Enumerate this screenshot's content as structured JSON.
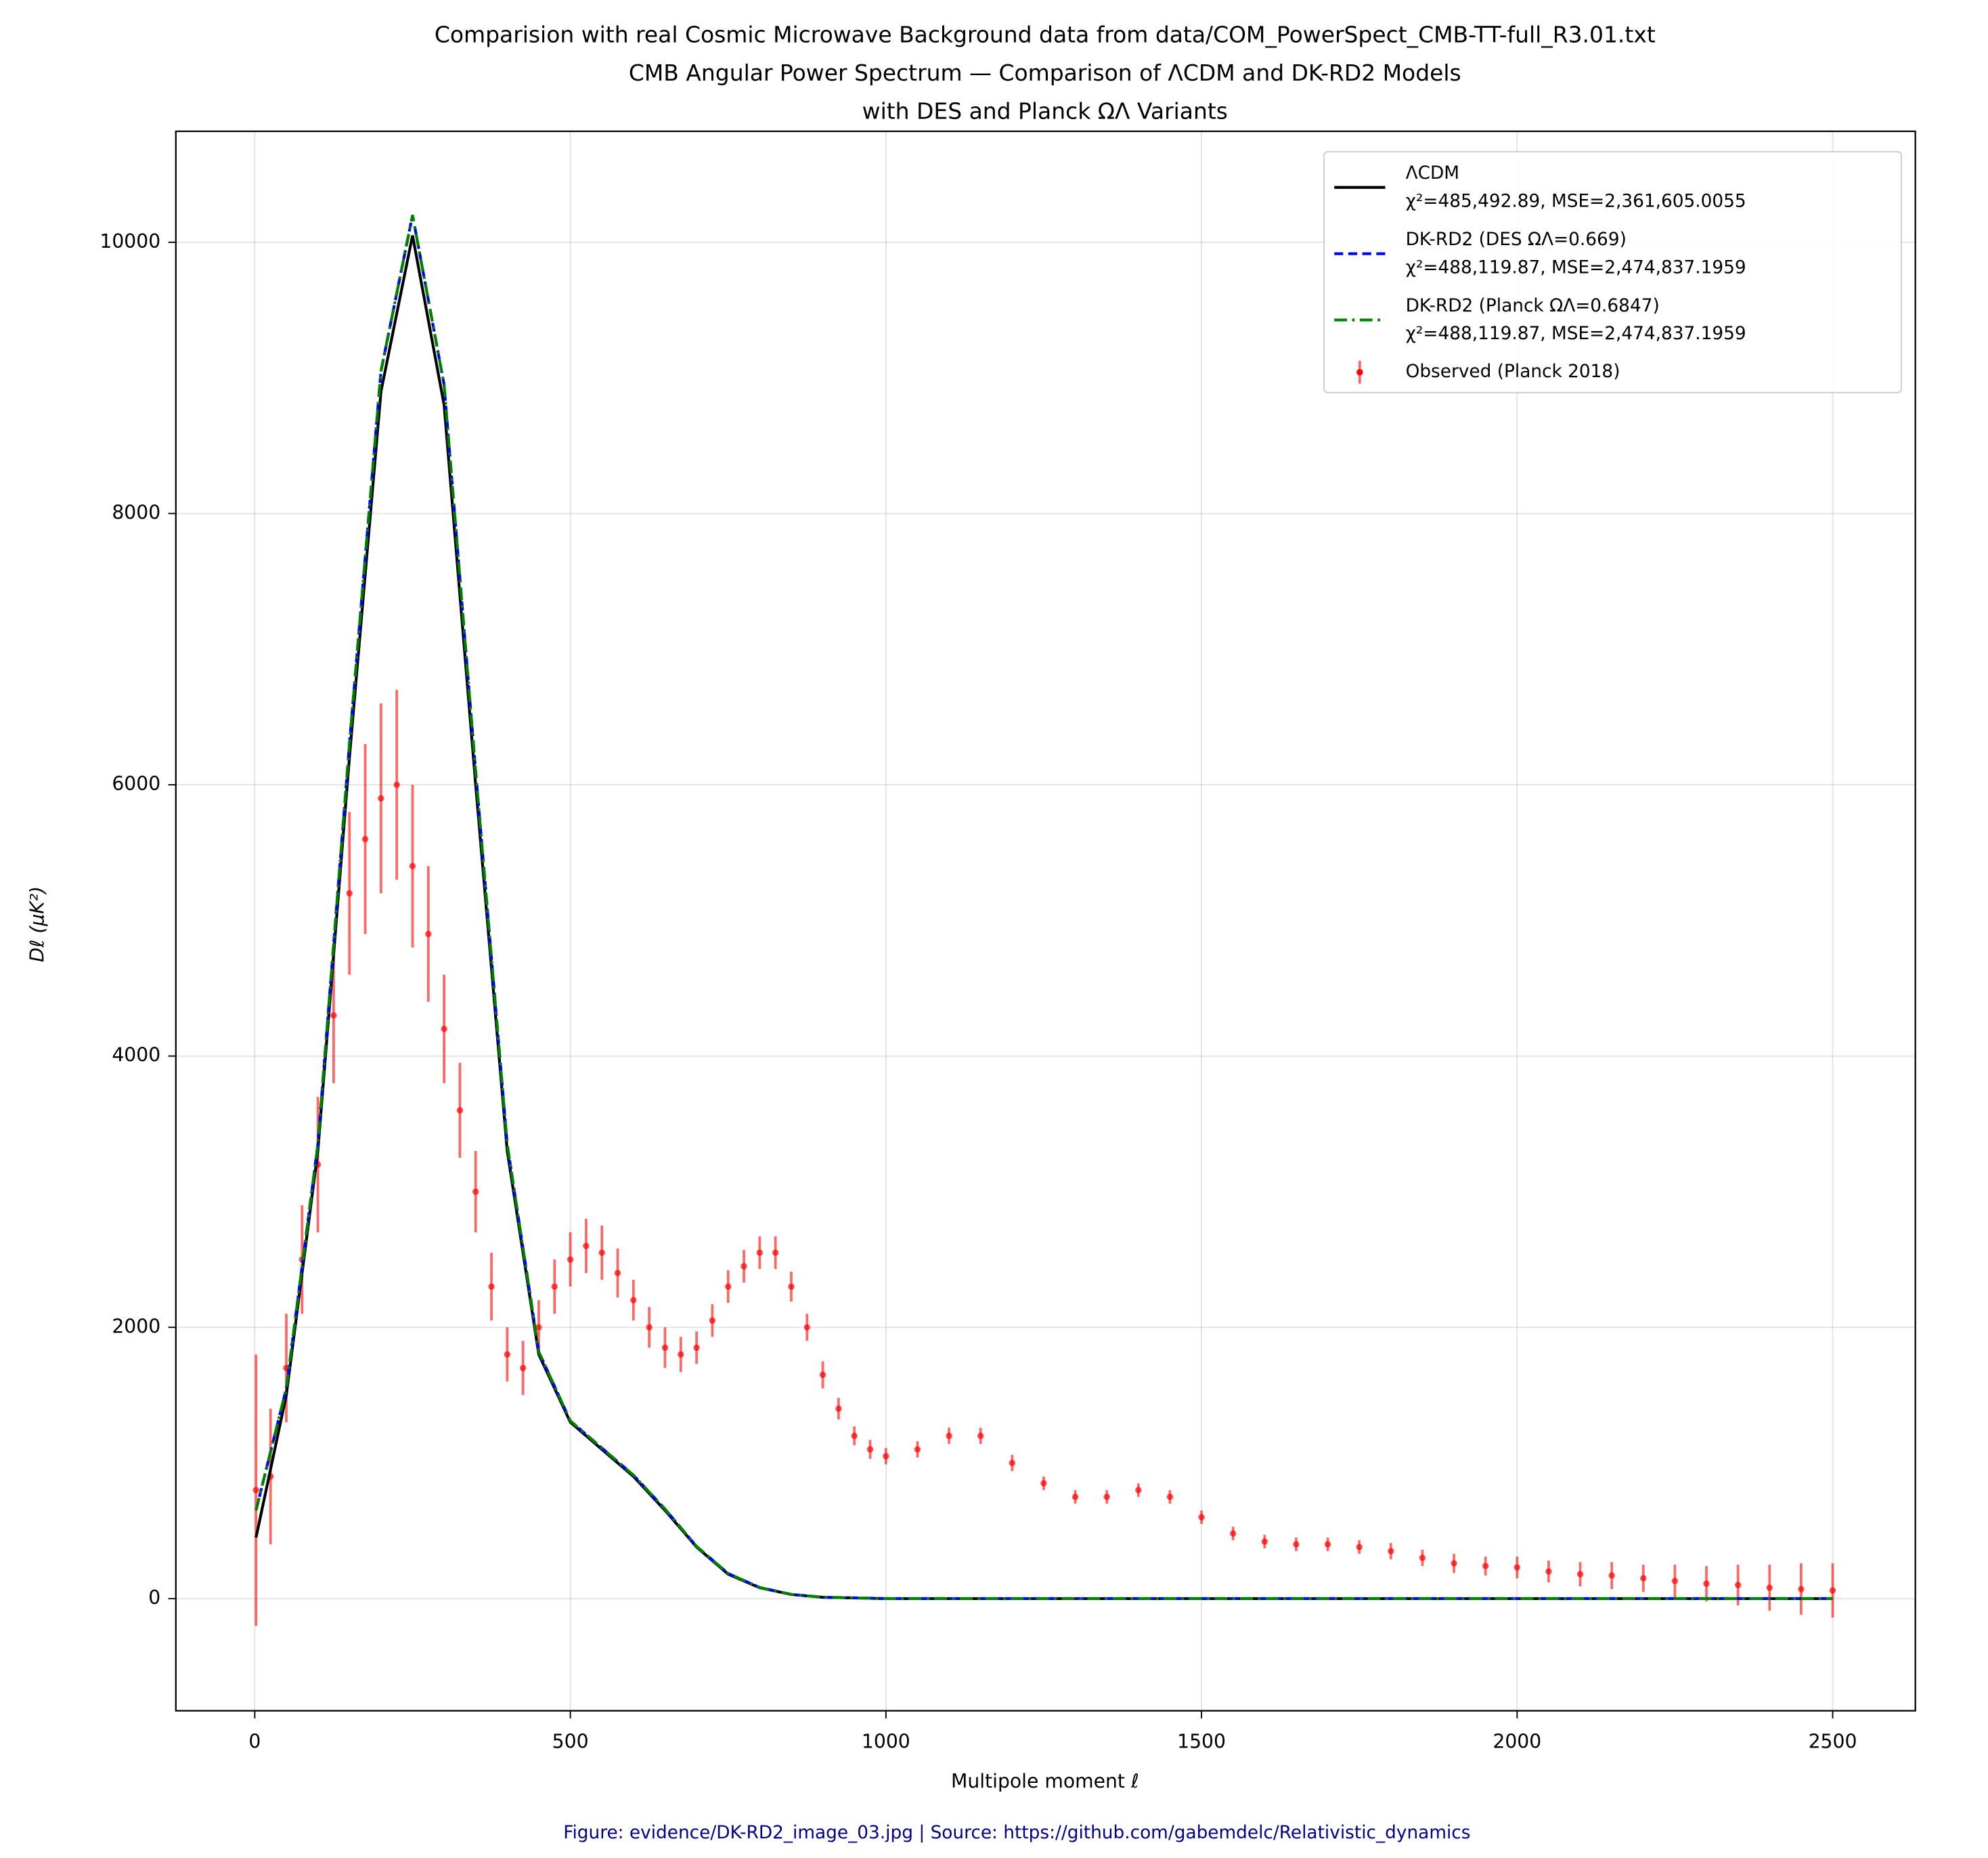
{
  "chart_data": {
    "type": "line",
    "title": "Comparision with real Cosmic Microwave Background data from data/COM_PowerSpect_CMB-TT-full_R3.01.txt\nCMB Angular Power Spectrum — Comparison of ΛCDM and DK-RD2 Models\nwith DES and Planck ΩΛ Variants",
    "x_label": "Multipole moment ℓ",
    "y_label": "Dℓ (μK²)",
    "footer": "Figure: evidence/DK-RD2_image_03.jpg  | Source:  https://github.com/gabemdelc/Relativistic_dynamics",
    "xlim": [
      -125,
      2631
    ],
    "ylim": [
      -827,
      10818
    ],
    "xticks": [
      0,
      500,
      1000,
      1500,
      2000,
      2500
    ],
    "yticks": [
      0,
      2000,
      4000,
      6000,
      8000,
      10000
    ],
    "grid": true,
    "legend": "upper right",
    "series": [
      {
        "name": "ΛCDM\nχ²=485,492.89, MSE=2,361,605.0055",
        "color": "#000000",
        "linestyle": "solid",
        "x": [
          2,
          50,
          100,
          150,
          200,
          250,
          300,
          350,
          400,
          450,
          500,
          550,
          600,
          650,
          700,
          750,
          800,
          850,
          900,
          1000,
          1500,
          2000,
          2500
        ],
        "values": [
          450,
          1500,
          3300,
          6200,
          8900,
          10050,
          8800,
          6000,
          3300,
          1800,
          1300,
          1100,
          900,
          650,
          380,
          180,
          80,
          30,
          10,
          0,
          0,
          0,
          0
        ]
      },
      {
        "name": "DK-RD2 (DES ΩΛ=0.669)\nχ²=488,119.87, MSE=2,474,837.1959",
        "color": "#0000ff",
        "linestyle": "dashed",
        "x": [
          2,
          50,
          100,
          150,
          200,
          250,
          300,
          350,
          400,
          450,
          500,
          550,
          600,
          650,
          700,
          750,
          800,
          850,
          900,
          1000,
          1500,
          2000,
          2500
        ],
        "values": [
          650,
          1550,
          3350,
          6300,
          9050,
          10200,
          8950,
          6100,
          3350,
          1820,
          1310,
          1110,
          910,
          660,
          385,
          185,
          82,
          31,
          10,
          0,
          0,
          0,
          0
        ]
      },
      {
        "name": "DK-RD2 (Planck ΩΛ=0.6847)\nχ²=488,119.87, MSE=2,474,837.1959",
        "color": "#008000",
        "linestyle": "dashdot",
        "x": [
          2,
          50,
          100,
          150,
          200,
          250,
          300,
          350,
          400,
          450,
          500,
          550,
          600,
          650,
          700,
          750,
          800,
          850,
          900,
          1000,
          1500,
          2000,
          2500
        ],
        "values": [
          650,
          1550,
          3350,
          6300,
          9050,
          10200,
          8950,
          6100,
          3350,
          1820,
          1310,
          1110,
          910,
          660,
          385,
          185,
          82,
          31,
          10,
          0,
          0,
          0,
          0
        ]
      },
      {
        "name": "Observed (Planck 2018)",
        "color": "#ff0000",
        "linestyle": "errorbar",
        "x": [
          2,
          25,
          50,
          75,
          100,
          125,
          150,
          175,
          200,
          225,
          250,
          275,
          300,
          325,
          350,
          375,
          400,
          425,
          450,
          475,
          500,
          525,
          550,
          575,
          600,
          625,
          650,
          675,
          700,
          725,
          750,
          775,
          800,
          825,
          850,
          875,
          900,
          925,
          950,
          975,
          1000,
          1050,
          1100,
          1150,
          1200,
          1250,
          1300,
          1350,
          1400,
          1450,
          1500,
          1550,
          1600,
          1650,
          1700,
          1750,
          1800,
          1850,
          1900,
          1950,
          2000,
          2050,
          2100,
          2150,
          2200,
          2250,
          2300,
          2350,
          2400,
          2450,
          2500
        ],
        "values": [
          800,
          900,
          1700,
          2500,
          3200,
          4300,
          5200,
          5600,
          5900,
          6000,
          5400,
          4900,
          4200,
          3600,
          3000,
          2300,
          1800,
          1700,
          2000,
          2300,
          2500,
          2600,
          2550,
          2400,
          2200,
          2000,
          1850,
          1800,
          1850,
          2050,
          2300,
          2450,
          2550,
          2550,
          2300,
          2000,
          1650,
          1400,
          1200,
          1100,
          1050,
          1100,
          1200,
          1200,
          1000,
          850,
          750,
          750,
          800,
          750,
          600,
          480,
          420,
          400,
          400,
          380,
          350,
          300,
          260,
          240,
          230,
          200,
          180,
          170,
          150,
          130,
          110,
          100,
          80,
          70,
          60
        ],
        "errors": [
          1000,
          500,
          400,
          400,
          500,
          500,
          600,
          700,
          700,
          700,
          600,
          500,
          400,
          350,
          300,
          250,
          200,
          200,
          200,
          200,
          200,
          200,
          200,
          180,
          150,
          150,
          150,
          130,
          120,
          120,
          120,
          120,
          120,
          120,
          110,
          100,
          100,
          80,
          70,
          70,
          60,
          60,
          60,
          60,
          60,
          50,
          50,
          50,
          50,
          50,
          50,
          50,
          50,
          50,
          50,
          50,
          60,
          60,
          70,
          70,
          80,
          80,
          90,
          100,
          100,
          120,
          130,
          150,
          170,
          190,
          200
        ]
      }
    ]
  }
}
